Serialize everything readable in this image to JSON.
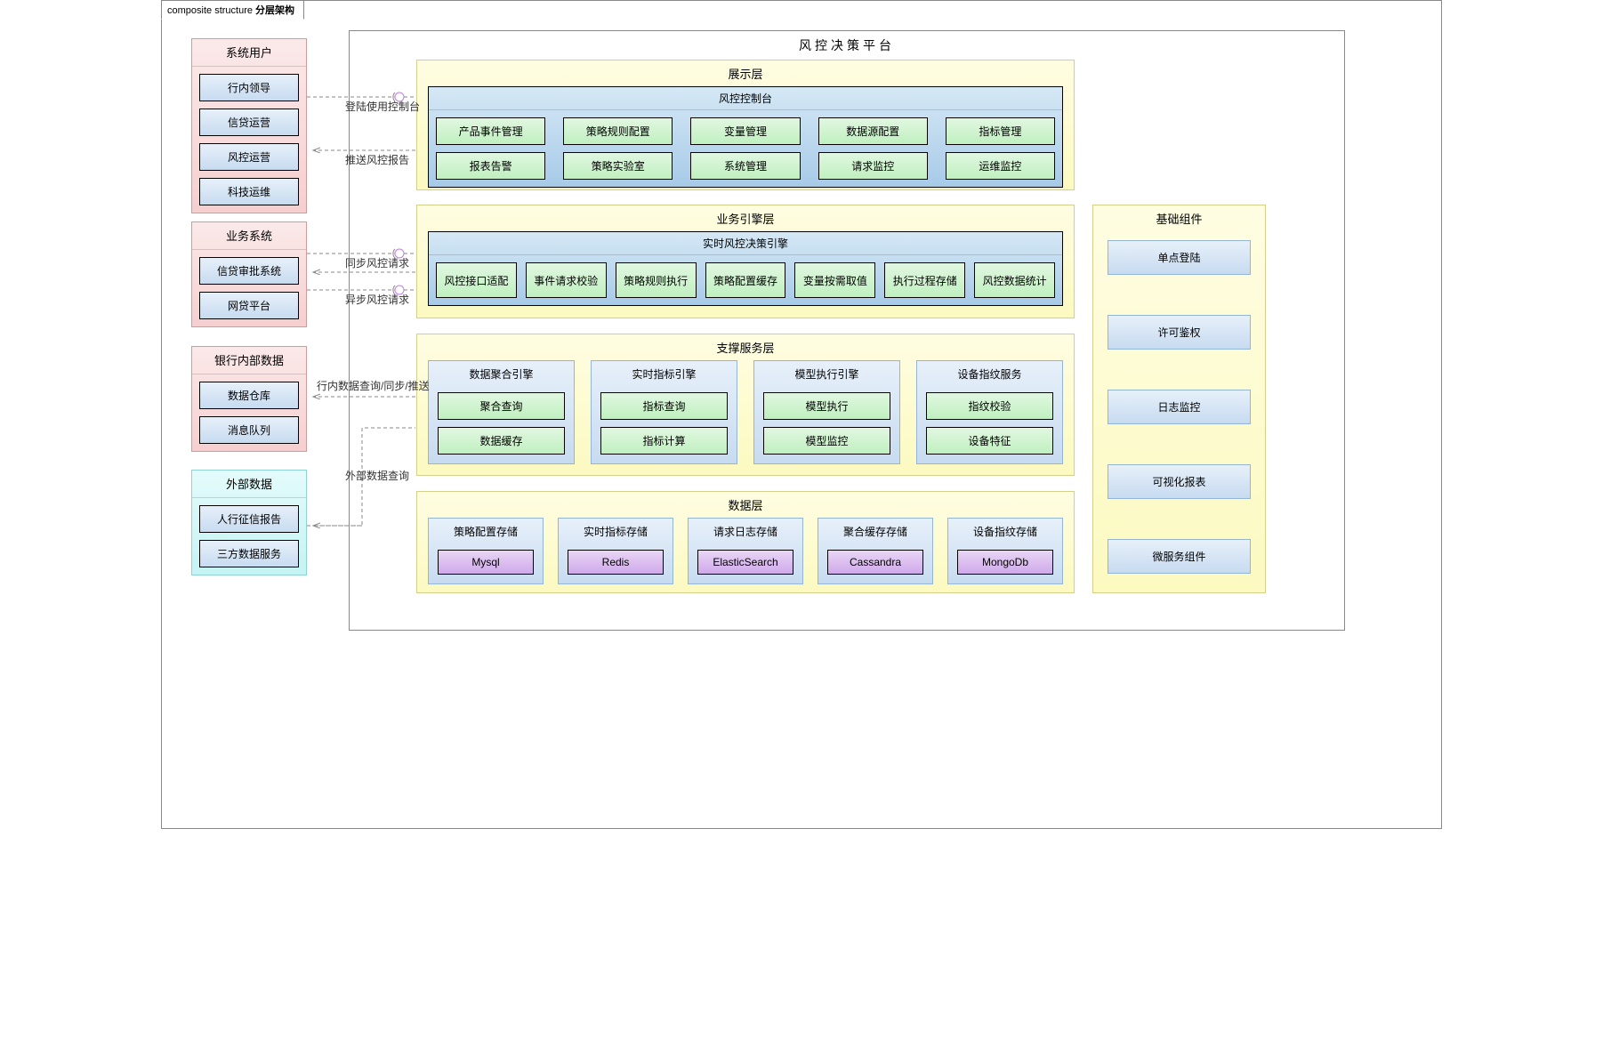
{
  "tab_prefix": "composite structure",
  "tab_title": "分层架构",
  "left": {
    "users": {
      "title": "系统用户",
      "items": [
        "行内领导",
        "信贷运营",
        "风控运营",
        "科技运维"
      ]
    },
    "biz": {
      "title": "业务系统",
      "items": [
        "信贷审批系统",
        "网贷平台"
      ]
    },
    "bank": {
      "title": "银行内部数据",
      "items": [
        "数据仓库",
        "消息队列"
      ]
    },
    "ext": {
      "title": "外部数据",
      "items": [
        "人行征信报告",
        "三方数据服务"
      ]
    }
  },
  "platform_title": "风控决策平台",
  "display_layer": {
    "title": "展示层",
    "console_title": "风控控制台",
    "row1": [
      "产品事件管理",
      "策略规则配置",
      "变量管理",
      "数据源配置",
      "指标管理"
    ],
    "row2": [
      "报表告警",
      "策略实验室",
      "系统管理",
      "请求监控",
      "运维监控"
    ]
  },
  "engine_layer": {
    "title": "业务引擎层",
    "engine_title": "实时风控决策引擎",
    "items": [
      "风控接口适配",
      "事件请求校验",
      "策略规则执行",
      "策略配置缓存",
      "变量按需取值",
      "执行过程存储",
      "风控数据统计"
    ]
  },
  "support_layer": {
    "title": "支撑服务层",
    "cols": [
      {
        "title": "数据聚合引擎",
        "items": [
          "聚合查询",
          "数据缓存"
        ]
      },
      {
        "title": "实时指标引擎",
        "items": [
          "指标查询",
          "指标计算"
        ]
      },
      {
        "title": "模型执行引擎",
        "items": [
          "模型执行",
          "模型监控"
        ]
      },
      {
        "title": "设备指纹服务",
        "items": [
          "指纹校验",
          "设备特征"
        ]
      }
    ]
  },
  "data_layer": {
    "title": "数据层",
    "cols": [
      {
        "title": "策略配置存储",
        "db": "Mysql"
      },
      {
        "title": "实时指标存储",
        "db": "Redis"
      },
      {
        "title": "请求日志存储",
        "db": "ElasticSearch"
      },
      {
        "title": "聚合缓存存储",
        "db": "Cassandra"
      },
      {
        "title": "设备指纹存储",
        "db": "MongoDb"
      }
    ]
  },
  "infra": {
    "title": "基础组件",
    "items": [
      "单点登陆",
      "许可鉴权",
      "日志监控",
      "可视化报表",
      "微服务组件"
    ]
  },
  "labels": {
    "login": "登陆使用控制台",
    "push_report": "推送风控报告",
    "sync_req": "同步风控请求",
    "async_req": "异步风控请求",
    "bank_q": "行内数据查询/同步/推送",
    "ext_q": "外部数据查询"
  },
  "colors": {
    "pink_border": "#d49a9a",
    "cyan_border": "#8fd4d4",
    "yellow_border": "#d4cf8a",
    "blue_border": "#93b6d8",
    "green_border": "#8cd08c",
    "purple_border": "#b387d0",
    "dash": "#888888",
    "lollipop": "#c080e0"
  }
}
